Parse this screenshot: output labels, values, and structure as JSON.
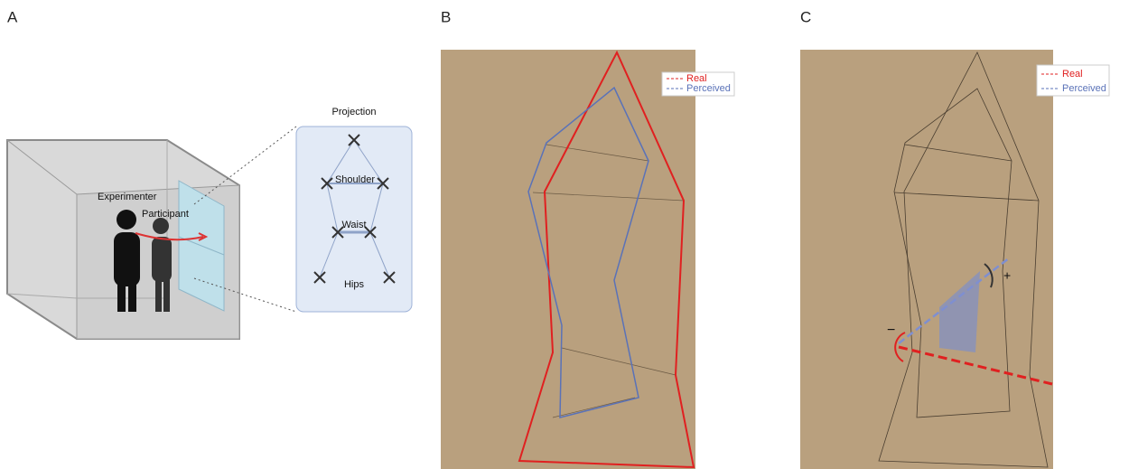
{
  "panels": [
    {
      "label": "A",
      "experimenter": "Experimenter",
      "participant": "Participant",
      "projection": {
        "title": "Projection",
        "labels": [
          "Shoulder",
          "Waist",
          "Hips"
        ]
      }
    },
    {
      "label": "B",
      "legend": [
        "Real",
        "Perceived"
      ]
    },
    {
      "label": "C",
      "legend": [
        "Real",
        "Perceived"
      ],
      "signs": [
        "+",
        "−"
      ]
    }
  ]
}
